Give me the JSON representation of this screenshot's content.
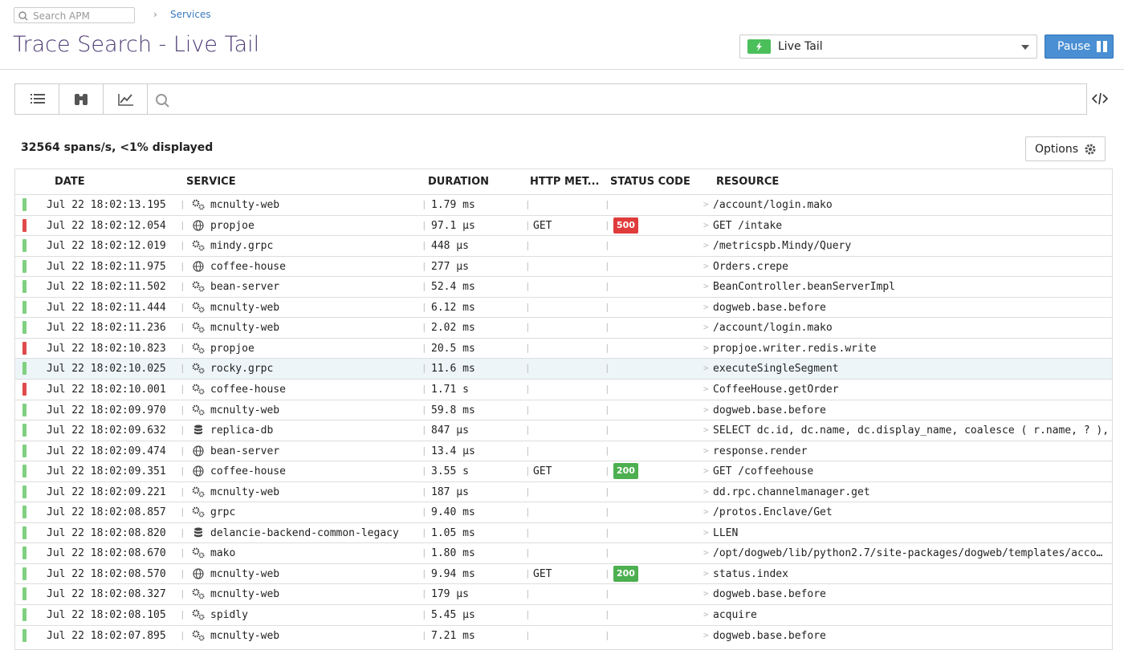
{
  "header": {
    "search_placeholder": "Search APM",
    "breadcrumb": "Services",
    "title": "Trace Search - Live Tail",
    "mode": "Live Tail",
    "pause": "Pause"
  },
  "summary": "32564 spans/s, <1% displayed",
  "options": "Options",
  "table": {
    "columns": [
      "DATE",
      "SERVICE",
      "DURATION",
      "HTTP MET...",
      "STATUS CODE",
      "RESOURCE"
    ],
    "rows": [
      {
        "date": "Jul 22 18:02:13.195",
        "icon": "gear",
        "service": "mcnulty-web",
        "duration": "1.79 ms",
        "resource": "/account/login.mako",
        "bar_color": "#7fd07f"
      },
      {
        "date": "Jul 22 18:02:12.054",
        "icon": "globe",
        "service": "propjoe",
        "duration": "97.1 µs",
        "method": "GET",
        "status": 500,
        "status_color": "#e03b3b",
        "resource": "GET /intake",
        "bar_color": "#e04a4a"
      },
      {
        "date": "Jul 22 18:02:12.019",
        "icon": "gear",
        "service": "mindy.grpc",
        "duration": "448 µs",
        "resource": "/metricspb.Mindy/Query",
        "bar_color": "#7fd07f"
      },
      {
        "date": "Jul 22 18:02:11.975",
        "icon": "globe",
        "service": "coffee-house",
        "duration": "277 µs",
        "resource": "Orders.crepe",
        "bar_color": "#7fd07f"
      },
      {
        "date": "Jul 22 18:02:11.502",
        "icon": "gear",
        "service": "bean-server",
        "duration": "52.4 ms",
        "resource": "BeanController.beanServerImpl",
        "bar_color": "#7fd07f"
      },
      {
        "date": "Jul 22 18:02:11.444",
        "icon": "gear",
        "service": "mcnulty-web",
        "duration": "6.12 ms",
        "resource": "dogweb.base.before",
        "bar_color": "#7fd07f"
      },
      {
        "date": "Jul 22 18:02:11.236",
        "icon": "gear",
        "service": "mcnulty-web",
        "duration": "2.02 ms",
        "resource": "/account/login.mako",
        "bar_color": "#7fd07f"
      },
      {
        "date": "Jul 22 18:02:10.823",
        "icon": "gear",
        "service": "propjoe",
        "duration": "20.5 ms",
        "resource": "propjoe.writer.redis.write",
        "bar_color": "#e04a4a"
      },
      {
        "date": "Jul 22 18:02:10.025",
        "icon": "gear",
        "service": "rocky.grpc",
        "duration": "11.6 ms",
        "resource": "executeSingleSegment",
        "bar_color": "#7fd07f",
        "selected": true
      },
      {
        "date": "Jul 22 18:02:10.001",
        "icon": "gear",
        "service": "coffee-house",
        "duration": "1.71 s",
        "resource": "CoffeeHouse.getOrder",
        "bar_color": "#e04a4a"
      },
      {
        "date": "Jul 22 18:02:09.970",
        "icon": "gear",
        "service": "mcnulty-web",
        "duration": "59.8 ms",
        "resource": "dogweb.base.before",
        "bar_color": "#7fd07f"
      },
      {
        "date": "Jul 22 18:02:09.632",
        "icon": "db",
        "service": "replica-db",
        "duration": "847 µs",
        "resource": "SELECT dc.id, dc.name, dc.display_name, coalesce ( r.name, ? ), …",
        "bar_color": "#7fd07f"
      },
      {
        "date": "Jul 22 18:02:09.474",
        "icon": "globe",
        "service": "bean-server",
        "duration": "13.4 µs",
        "resource": "response.render",
        "bar_color": "#7fd07f"
      },
      {
        "date": "Jul 22 18:02:09.351",
        "icon": "globe",
        "service": "coffee-house",
        "duration": "3.55 s",
        "method": "GET",
        "status": 200,
        "status_color": "#4caf50",
        "resource": "GET /coffeehouse",
        "bar_color": "#7fd07f"
      },
      {
        "date": "Jul 22 18:02:09.221",
        "icon": "gear",
        "service": "mcnulty-web",
        "duration": "187 µs",
        "resource": "dd.rpc.channelmanager.get",
        "bar_color": "#7fd07f"
      },
      {
        "date": "Jul 22 18:02:08.857",
        "icon": "gear",
        "service": "grpc",
        "duration": "9.40 ms",
        "resource": "/protos.Enclave/Get",
        "bar_color": "#7fd07f"
      },
      {
        "date": "Jul 22 18:02:08.820",
        "icon": "db",
        "service": "delancie-backend-common-legacy",
        "duration": "1.05 ms",
        "resource": "LLEN",
        "bar_color": "#7fd07f"
      },
      {
        "date": "Jul 22 18:02:08.670",
        "icon": "gear",
        "service": "mako",
        "duration": "1.80 ms",
        "resource": "/opt/dogweb/lib/python2.7/site-packages/dogweb/templates/acco…",
        "bar_color": "#7fd07f"
      },
      {
        "date": "Jul 22 18:02:08.570",
        "icon": "globe",
        "service": "mcnulty-web",
        "duration": "9.94 ms",
        "method": "GET",
        "status": 200,
        "status_color": "#4caf50",
        "resource": "status.index",
        "bar_color": "#7fd07f"
      },
      {
        "date": "Jul 22 18:02:08.327",
        "icon": "gear",
        "service": "mcnulty-web",
        "duration": "179 µs",
        "resource": "dogweb.base.before",
        "bar_color": "#7fd07f"
      },
      {
        "date": "Jul 22 18:02:08.105",
        "icon": "gear",
        "service": "spidly",
        "duration": "5.45 µs",
        "resource": "acquire",
        "bar_color": "#7fd07f"
      },
      {
        "date": "Jul 22 18:02:07.895",
        "icon": "gear",
        "service": "mcnulty-web",
        "duration": "7.21 ms",
        "resource": "dogweb.base.before",
        "bar_color": "#7fd07f"
      }
    ]
  }
}
